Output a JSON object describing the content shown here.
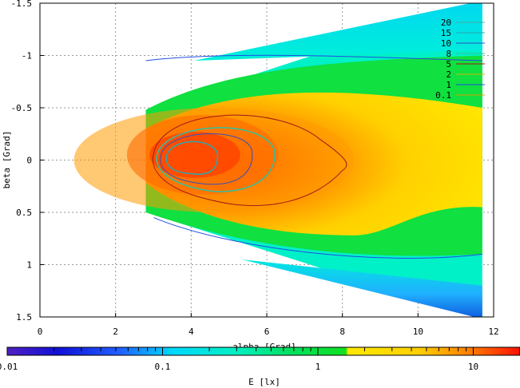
{
  "chart_data": {
    "type": "heatmap",
    "xlabel": "alpha [Grad]",
    "ylabel": "beta [Grad]",
    "colorbar_label": "E [lx]",
    "xlim": [
      0,
      12
    ],
    "ylim": [
      -1.5,
      1.5
    ],
    "y_inverted": true,
    "x_ticks": [
      "0",
      "2",
      "4",
      "6",
      "8",
      "10",
      "12"
    ],
    "y_ticks": [
      "-1.5",
      "-1",
      "-0.5",
      "0",
      "0.5",
      "1",
      "1.5"
    ],
    "colorbar": {
      "scale": "log",
      "range": [
        0.01,
        20
      ],
      "tick_labels": [
        "0.01",
        "0.1",
        "1",
        "10"
      ]
    },
    "contour_levels": [
      {
        "level": "20",
        "color": "#4aa8a0"
      },
      {
        "level": "15",
        "color": "#28a8b0"
      },
      {
        "level": "10",
        "color": "#3050c0"
      },
      {
        "level": "8",
        "color": "#30c0a0"
      },
      {
        "level": "5",
        "color": "#a01818"
      },
      {
        "level": "2",
        "color": "#c8b800"
      },
      {
        "level": "1",
        "color": "#2050e0"
      },
      {
        "level": "0.1",
        "color": "#d0a000"
      }
    ],
    "grid": true,
    "legend_position": "top-right",
    "illuminated_region": {
      "left_x": 2.8,
      "left_beta_range": [
        -0.48,
        0.5
      ],
      "right_x": 11.7,
      "right_beta_range": [
        -1.5,
        1.5
      ]
    }
  }
}
